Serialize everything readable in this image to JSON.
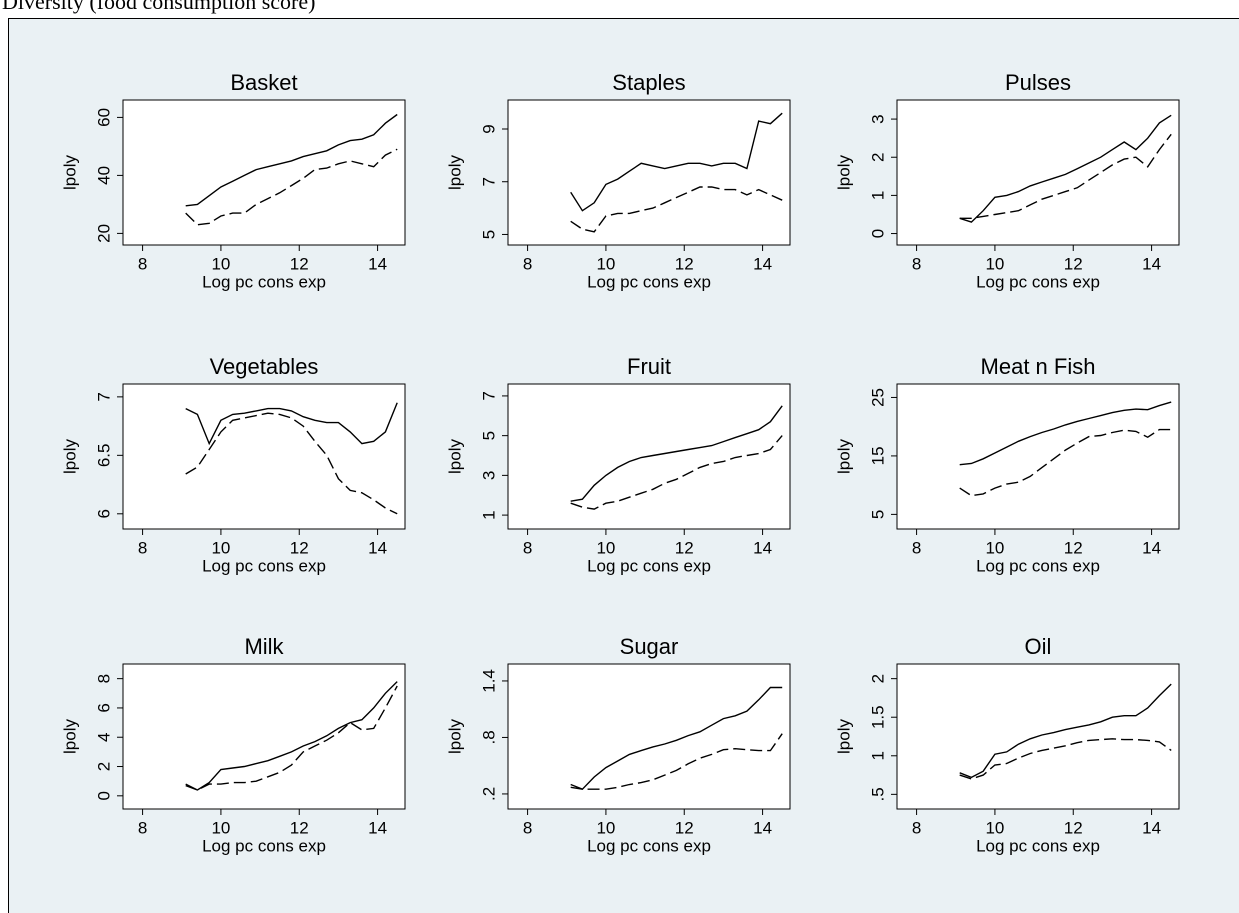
{
  "caption": "Diversity (food consumption score)",
  "chart_data": [
    {
      "type": "line",
      "title": "Basket",
      "xlabel": "Log pc cons exp",
      "ylabel": "lpoly",
      "xlim": [
        7.5,
        14.7
      ],
      "xticks": [
        8,
        10,
        12,
        14
      ],
      "ylim": [
        16,
        66
      ],
      "yticks": [
        20,
        40,
        60
      ],
      "x": [
        9.1,
        9.4,
        9.7,
        10,
        10.3,
        10.6,
        10.9,
        11.2,
        11.5,
        11.8,
        12.1,
        12.4,
        12.7,
        13,
        13.3,
        13.6,
        13.9,
        14.2,
        14.5
      ],
      "series": [
        {
          "color": "#000000",
          "style": "solid",
          "values": [
            29.5,
            30,
            33,
            36,
            38,
            40,
            42,
            43,
            44,
            45,
            46.5,
            47.5,
            48.5,
            50.5,
            52,
            52.5,
            54,
            58,
            61
          ]
        },
        {
          "color": "#000000",
          "style": "dashed",
          "values": [
            27,
            23,
            23.5,
            26,
            27,
            27,
            30,
            32,
            34,
            36.5,
            39,
            42,
            42.5,
            44,
            45,
            44,
            43,
            47,
            49
          ]
        }
      ]
    },
    {
      "type": "line",
      "title": "Staples",
      "xlabel": "Log pc cons exp",
      "ylabel": "lpoly",
      "xlim": [
        7.5,
        14.7
      ],
      "xticks": [
        8,
        10,
        12,
        14
      ],
      "ylim": [
        4.6,
        10.1
      ],
      "yticks": [
        5,
        7,
        9
      ],
      "x": [
        9.1,
        9.4,
        9.7,
        10,
        10.3,
        10.6,
        10.9,
        11.2,
        11.5,
        11.8,
        12.1,
        12.4,
        12.7,
        13,
        13.3,
        13.6,
        13.9,
        14.2,
        14.5
      ],
      "series": [
        {
          "color": "#000000",
          "style": "solid",
          "values": [
            6.6,
            5.9,
            6.2,
            6.9,
            7.1,
            7.4,
            7.7,
            7.6,
            7.5,
            7.6,
            7.7,
            7.7,
            7.6,
            7.7,
            7.7,
            7.5,
            9.3,
            9.2,
            9.6
          ]
        },
        {
          "color": "#000000",
          "style": "dashed",
          "values": [
            5.5,
            5.2,
            5.1,
            5.7,
            5.8,
            5.8,
            5.9,
            6.0,
            6.2,
            6.4,
            6.6,
            6.8,
            6.8,
            6.7,
            6.7,
            6.5,
            6.7,
            6.5,
            6.3
          ]
        }
      ]
    },
    {
      "type": "line",
      "title": "Pulses",
      "xlabel": "Log pc cons exp",
      "ylabel": "lpoly",
      "xlim": [
        7.5,
        14.7
      ],
      "xticks": [
        8,
        10,
        12,
        14
      ],
      "ylim": [
        -0.3,
        3.5
      ],
      "yticks": [
        0,
        1,
        2,
        3
      ],
      "x": [
        9.1,
        9.4,
        9.7,
        10,
        10.3,
        10.6,
        10.9,
        11.2,
        11.5,
        11.8,
        12.1,
        12.4,
        12.7,
        13,
        13.3,
        13.6,
        13.9,
        14.2,
        14.5
      ],
      "series": [
        {
          "color": "#000000",
          "style": "solid",
          "values": [
            0.4,
            0.3,
            0.6,
            0.95,
            1.0,
            1.1,
            1.25,
            1.35,
            1.45,
            1.55,
            1.7,
            1.85,
            2.0,
            2.2,
            2.4,
            2.2,
            2.5,
            2.9,
            3.1
          ]
        },
        {
          "color": "#000000",
          "style": "dashed",
          "values": [
            0.4,
            0.4,
            0.45,
            0.5,
            0.55,
            0.6,
            0.75,
            0.9,
            1.0,
            1.1,
            1.2,
            1.4,
            1.6,
            1.8,
            1.95,
            2.0,
            1.75,
            2.2,
            2.6
          ]
        }
      ]
    },
    {
      "type": "line",
      "title": "Vegetables",
      "xlabel": "Log pc cons exp",
      "ylabel": "lpoly",
      "xlim": [
        7.5,
        14.7
      ],
      "xticks": [
        8,
        10,
        12,
        14
      ],
      "ylim": [
        5.87,
        7.11
      ],
      "yticks": [
        6,
        6.5,
        7
      ],
      "x": [
        9.1,
        9.4,
        9.7,
        10,
        10.3,
        10.6,
        10.9,
        11.2,
        11.5,
        11.8,
        12.1,
        12.4,
        12.7,
        13,
        13.3,
        13.6,
        13.9,
        14.2,
        14.5
      ],
      "series": [
        {
          "color": "#000000",
          "style": "solid",
          "values": [
            6.9,
            6.85,
            6.6,
            6.8,
            6.85,
            6.86,
            6.88,
            6.9,
            6.9,
            6.88,
            6.83,
            6.8,
            6.78,
            6.78,
            6.7,
            6.6,
            6.62,
            6.7,
            6.95
          ]
        },
        {
          "color": "#000000",
          "style": "dashed",
          "values": [
            6.34,
            6.4,
            6.55,
            6.7,
            6.8,
            6.82,
            6.84,
            6.86,
            6.85,
            6.82,
            6.75,
            6.62,
            6.5,
            6.3,
            6.2,
            6.18,
            6.12,
            6.05,
            6.0
          ]
        }
      ]
    },
    {
      "type": "line",
      "title": "Fruit",
      "xlabel": "Log pc cons exp",
      "ylabel": "lpoly",
      "xlim": [
        7.5,
        14.7
      ],
      "xticks": [
        8,
        10,
        12,
        14
      ],
      "ylim": [
        0.3,
        7.6
      ],
      "yticks": [
        1,
        3,
        5,
        7
      ],
      "x": [
        9.1,
        9.4,
        9.7,
        10,
        10.3,
        10.6,
        10.9,
        11.2,
        11.5,
        11.8,
        12.1,
        12.4,
        12.7,
        13,
        13.3,
        13.6,
        13.9,
        14.2,
        14.5
      ],
      "series": [
        {
          "color": "#000000",
          "style": "solid",
          "values": [
            1.7,
            1.8,
            2.5,
            3.0,
            3.4,
            3.7,
            3.9,
            4.0,
            4.1,
            4.2,
            4.3,
            4.4,
            4.5,
            4.7,
            4.9,
            5.1,
            5.3,
            5.7,
            6.5
          ]
        },
        {
          "color": "#000000",
          "style": "dashed",
          "values": [
            1.6,
            1.4,
            1.3,
            1.6,
            1.7,
            1.9,
            2.1,
            2.3,
            2.6,
            2.8,
            3.1,
            3.4,
            3.6,
            3.7,
            3.9,
            4.0,
            4.1,
            4.3,
            5.0
          ]
        }
      ]
    },
    {
      "type": "line",
      "title": "Meat n Fish",
      "xlabel": "Log pc cons exp",
      "ylabel": "lpoly",
      "xlim": [
        7.5,
        14.7
      ],
      "xticks": [
        8,
        10,
        12,
        14
      ],
      "ylim": [
        2.5,
        27.3
      ],
      "yticks": [
        5,
        15,
        25
      ],
      "x": [
        9.1,
        9.4,
        9.7,
        10,
        10.3,
        10.6,
        10.9,
        11.2,
        11.5,
        11.8,
        12.1,
        12.4,
        12.7,
        13,
        13.3,
        13.6,
        13.9,
        14.2,
        14.5
      ],
      "series": [
        {
          "color": "#000000",
          "style": "solid",
          "values": [
            13.5,
            13.7,
            14.5,
            15.5,
            16.5,
            17.5,
            18.3,
            19,
            19.6,
            20.3,
            20.9,
            21.4,
            21.9,
            22.4,
            22.8,
            23,
            22.9,
            23.6,
            24.2
          ]
        },
        {
          "color": "#000000",
          "style": "dashed",
          "values": [
            9.5,
            8.2,
            8.5,
            9.5,
            10.2,
            10.5,
            11.5,
            13,
            14.5,
            16,
            17.2,
            18.3,
            18.5,
            19,
            19.4,
            19.2,
            18.2,
            19.5,
            19.5
          ]
        }
      ]
    },
    {
      "type": "line",
      "title": "Milk",
      "xlabel": "Log pc cons exp",
      "ylabel": "lpoly",
      "xlim": [
        7.5,
        14.7
      ],
      "xticks": [
        8,
        10,
        12,
        14
      ],
      "ylim": [
        -0.9,
        9.0
      ],
      "yticks": [
        0,
        2,
        4,
        6,
        8
      ],
      "x": [
        9.1,
        9.4,
        9.7,
        10,
        10.3,
        10.6,
        10.9,
        11.2,
        11.5,
        11.8,
        12.1,
        12.4,
        12.7,
        13,
        13.3,
        13.6,
        13.9,
        14.2,
        14.5
      ],
      "series": [
        {
          "color": "#000000",
          "style": "solid",
          "values": [
            0.7,
            0.4,
            0.9,
            1.8,
            1.9,
            2.0,
            2.2,
            2.4,
            2.7,
            3.0,
            3.4,
            3.7,
            4.1,
            4.6,
            5.0,
            5.2,
            6.0,
            7.0,
            7.8
          ]
        },
        {
          "color": "#000000",
          "style": "dashed",
          "values": [
            0.8,
            0.4,
            0.8,
            0.8,
            0.9,
            0.9,
            1.0,
            1.3,
            1.6,
            2.1,
            3.0,
            3.4,
            3.8,
            4.3,
            5.0,
            4.5,
            4.6,
            6.0,
            7.5
          ]
        }
      ]
    },
    {
      "type": "line",
      "title": "Sugar",
      "xlabel": "Log pc cons exp",
      "ylabel": "lpoly",
      "xlim": [
        7.5,
        14.7
      ],
      "xticks": [
        8,
        10,
        12,
        14
      ],
      "ylim": [
        0.04,
        1.58
      ],
      "yticks": [
        {
          "value": 0.2,
          "label": ".2"
        },
        {
          "value": 0.8,
          "label": ".8"
        },
        1.4
      ],
      "x": [
        9.1,
        9.4,
        9.7,
        10,
        10.3,
        10.6,
        10.9,
        11.2,
        11.5,
        11.8,
        12.1,
        12.4,
        12.7,
        13,
        13.3,
        13.6,
        13.9,
        14.2,
        14.5
      ],
      "series": [
        {
          "color": "#000000",
          "style": "solid",
          "values": [
            0.3,
            0.25,
            0.38,
            0.48,
            0.55,
            0.62,
            0.66,
            0.7,
            0.73,
            0.77,
            0.82,
            0.86,
            0.93,
            1.0,
            1.03,
            1.08,
            1.2,
            1.33,
            1.33
          ]
        },
        {
          "color": "#000000",
          "style": "dashed",
          "values": [
            0.27,
            0.25,
            0.25,
            0.25,
            0.27,
            0.3,
            0.32,
            0.35,
            0.4,
            0.45,
            0.52,
            0.58,
            0.62,
            0.67,
            0.68,
            0.67,
            0.66,
            0.66,
            0.84
          ]
        }
      ]
    },
    {
      "type": "line",
      "title": "Oil",
      "xlabel": "Log pc cons exp",
      "ylabel": "lpoly",
      "xlim": [
        7.5,
        14.7
      ],
      "xticks": [
        8,
        10,
        12,
        14
      ],
      "ylim": [
        0.31,
        2.19
      ],
      "yticks": [
        {
          "value": 0.5,
          "label": ".5"
        },
        1,
        1.5,
        2
      ],
      "x": [
        9.1,
        9.4,
        9.7,
        10,
        10.3,
        10.6,
        10.9,
        11.2,
        11.5,
        11.8,
        12.1,
        12.4,
        12.7,
        13,
        13.3,
        13.6,
        13.9,
        14.2,
        14.5
      ],
      "series": [
        {
          "color": "#000000",
          "style": "solid",
          "values": [
            0.78,
            0.72,
            0.8,
            1.02,
            1.05,
            1.15,
            1.22,
            1.27,
            1.3,
            1.34,
            1.37,
            1.4,
            1.44,
            1.5,
            1.52,
            1.52,
            1.62,
            1.78,
            1.93
          ]
        },
        {
          "color": "#000000",
          "style": "dashed",
          "values": [
            0.75,
            0.7,
            0.75,
            0.88,
            0.9,
            0.97,
            1.03,
            1.07,
            1.1,
            1.13,
            1.17,
            1.2,
            1.21,
            1.22,
            1.21,
            1.21,
            1.2,
            1.18,
            1.07
          ]
        }
      ]
    }
  ]
}
